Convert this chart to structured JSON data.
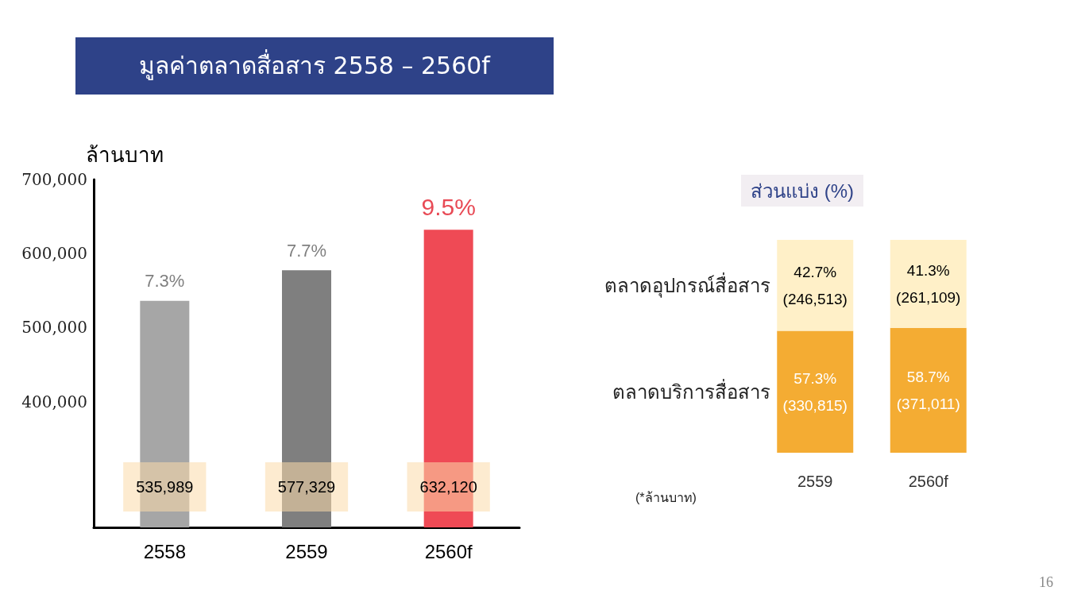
{
  "chart_data": [
    {
      "type": "bar",
      "title": "มูลค่าตลาดสื่อสาร 2558 – 2560f",
      "ylabel": "ล้านบาท",
      "categories": [
        "2558",
        "2559",
        "2560f"
      ],
      "values": [
        535989,
        577329,
        632120
      ],
      "colors": [
        "#a6a6a6",
        "#7f7f7f",
        "#ef4a55"
      ],
      "ylim": [
        230000,
        700000
      ],
      "yticks": [
        {
          "value": 400000,
          "label": "400,000"
        },
        {
          "value": 500000,
          "label": "500,000"
        },
        {
          "value": 600000,
          "label": "600,000"
        },
        {
          "value": 700000,
          "label": "700,000"
        }
      ],
      "grid": false,
      "legend": false,
      "value_labels": [
        "535,989",
        "577,329",
        "632,120"
      ],
      "annotations": [
        {
          "text": "7.3%",
          "x": "2558",
          "y": 535989
        },
        {
          "text": "7.7%",
          "x": "2559",
          "y": 577329
        },
        {
          "text": "9.5%",
          "x": "2560f",
          "y": 632120
        },
        "16"
      ]
    },
    {
      "type": "bar",
      "title": "ส่วนแบ่ง (%)",
      "categories": [
        "2559",
        "2560f"
      ],
      "stacked": true,
      "ylim": [
        0,
        100
      ],
      "tick_labels": "x",
      "legend": false,
      "grid": false,
      "series": [
        {
          "name": "ตลาดบริการสื่อสาร",
          "color": "#f4ac33",
          "values": [
            57.3,
            58.7
          ],
          "value_labels": [
            "57.3%\n(330,815)",
            "58.7%\n(371,011)"
          ]
        },
        {
          "name": "ตลาดอุปกรณ์สื่อสาร",
          "color": "#fff0c8",
          "values": [
            42.7,
            41.3
          ],
          "value_labels": [
            "42.7%\n(246,513)",
            "41.3%\n(261,109)"
          ]
        }
      ],
      "annotations": [
        "(*ล้านบาท)"
      ]
    }
  ]
}
